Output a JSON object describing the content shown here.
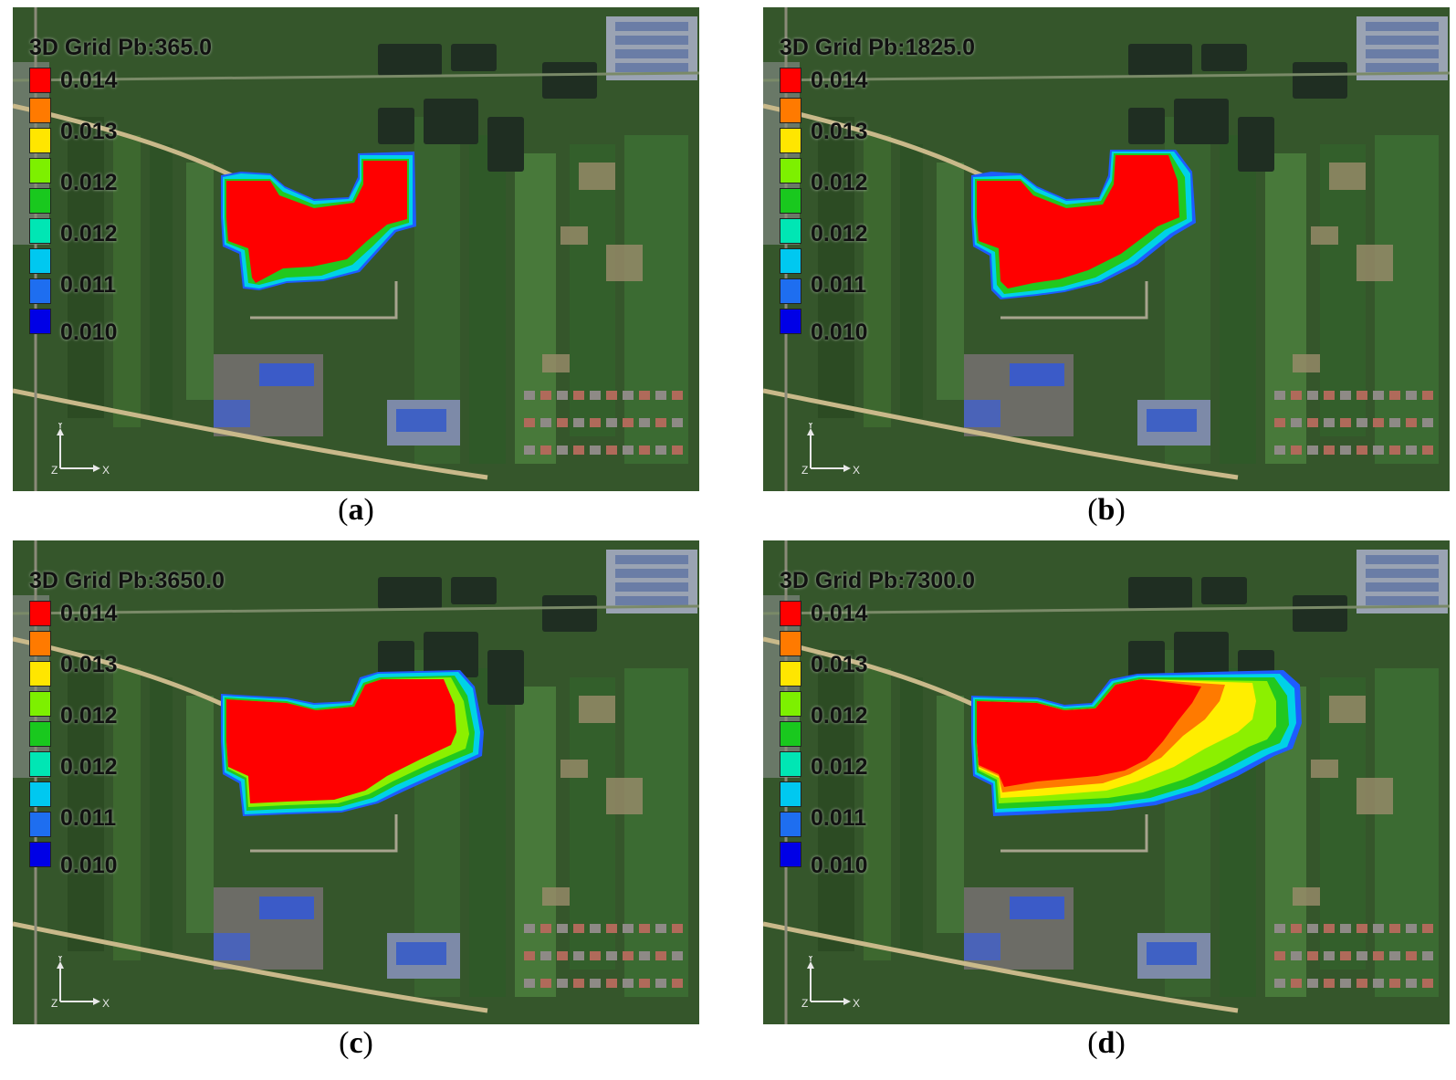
{
  "panels": [
    {
      "title": "3D Grid Pb:365.0",
      "caption_letter": "a"
    },
    {
      "title": "3D Grid Pb:1825.0",
      "caption_letter": "b"
    },
    {
      "title": "3D Grid Pb:3650.0",
      "caption_letter": "c"
    },
    {
      "title": "3D Grid Pb:7300.0",
      "caption_letter": "d"
    }
  ],
  "legend": {
    "ticks": [
      "0.014",
      "0.013",
      "0.012",
      "0.012",
      "0.011",
      "0.010"
    ],
    "colors": [
      "#ff0000",
      "#ff7a00",
      "#ffe600",
      "#7df000",
      "#19c81e",
      "#00e6b4",
      "#00c8f0",
      "#1e6ef0",
      "#0000e6"
    ]
  },
  "axis_labels": {
    "y": "Y",
    "z": "Z",
    "x": "X"
  },
  "plume_colors": {
    "edge_blue": "#1e5cff",
    "cyan": "#00d2e6",
    "green": "#22c81e",
    "yellow_green": "#8cf000",
    "yellow": "#ffee00",
    "orange": "#ff7a00",
    "red": "#ff0000"
  }
}
